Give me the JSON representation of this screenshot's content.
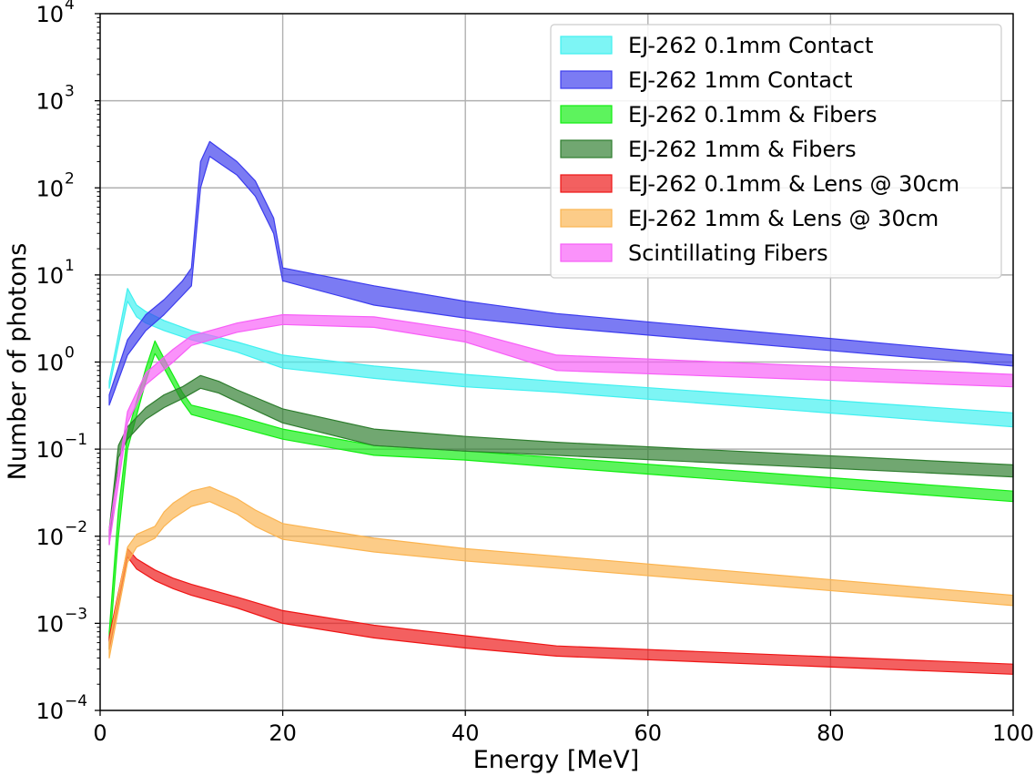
{
  "chart_data": {
    "type": "area",
    "title": "",
    "xlabel": "Energy [MeV]",
    "ylabel": "Number of photons",
    "xscale": "linear",
    "yscale": "log",
    "xlim": [
      0,
      100
    ],
    "ylim": [
      0.0001,
      10000
    ],
    "grid": true,
    "legend_position": "top-right",
    "x_ticks": [
      {
        "value": 0,
        "label": "0"
      },
      {
        "value": 20,
        "label": "20"
      },
      {
        "value": 40,
        "label": "40"
      },
      {
        "value": 60,
        "label": "60"
      },
      {
        "value": 80,
        "label": "80"
      },
      {
        "value": 100,
        "label": "100"
      }
    ],
    "y_ticks": [
      {
        "value": 0.0001,
        "base": "10",
        "exp": "−4"
      },
      {
        "value": 0.001,
        "base": "10",
        "exp": "−3"
      },
      {
        "value": 0.01,
        "base": "10",
        "exp": "−2"
      },
      {
        "value": 0.1,
        "base": "10",
        "exp": "−1"
      },
      {
        "value": 1,
        "base": "10",
        "exp": "0"
      },
      {
        "value": 10,
        "base": "10",
        "exp": "1"
      },
      {
        "value": 100,
        "base": "10",
        "exp": "2"
      },
      {
        "value": 1000,
        "base": "10",
        "exp": "3"
      },
      {
        "value": 10000,
        "base": "10",
        "exp": "4"
      }
    ],
    "series": [
      {
        "name": "EJ-262 0.1mm Contact",
        "color": "#40f0f0",
        "x": [
          1,
          3,
          4,
          5,
          7,
          10,
          15,
          20,
          30,
          40,
          50,
          100
        ],
        "lower": [
          0.5,
          5.0,
          3.3,
          2.8,
          2.3,
          1.8,
          1.3,
          0.85,
          0.65,
          0.52,
          0.45,
          0.18
        ],
        "upper": [
          0.6,
          7.0,
          4.5,
          3.8,
          3.0,
          2.3,
          1.7,
          1.2,
          0.9,
          0.72,
          0.6,
          0.26
        ]
      },
      {
        "name": "EJ-262 1mm Contact",
        "color": "#3c3cee",
        "x": [
          1,
          3,
          5,
          7,
          9,
          10,
          11,
          12,
          15,
          17,
          19,
          20,
          20.1,
          30,
          40,
          50,
          100
        ],
        "lower": [
          0.32,
          1.2,
          2.3,
          3.5,
          5.8,
          7.5,
          100,
          230,
          140,
          80,
          30,
          8.5,
          8.5,
          4.5,
          3.2,
          2.5,
          0.9
        ],
        "upper": [
          0.42,
          1.8,
          3.5,
          5.2,
          8.5,
          12,
          200,
          340,
          200,
          120,
          45,
          12,
          12,
          7.5,
          5.0,
          3.6,
          1.2
        ]
      },
      {
        "name": "EJ-262 0.1mm & Fibers",
        "color": "#10ee10",
        "x": [
          1,
          2,
          3,
          5,
          6,
          7,
          9,
          10,
          15,
          20,
          30,
          40,
          50,
          100
        ],
        "lower": [
          0.0005,
          0.01,
          0.1,
          0.6,
          1.25,
          0.85,
          0.35,
          0.25,
          0.18,
          0.13,
          0.085,
          0.075,
          0.062,
          0.025
        ],
        "upper": [
          0.0008,
          0.02,
          0.15,
          0.85,
          1.75,
          1.1,
          0.45,
          0.32,
          0.24,
          0.17,
          0.11,
          0.095,
          0.08,
          0.033
        ]
      },
      {
        "name": "EJ-262 1mm & Fibers",
        "color": "#2e7d2e",
        "x": [
          1,
          2,
          3,
          5,
          7,
          9,
          11,
          13,
          15,
          20,
          30,
          40,
          50,
          100
        ],
        "lower": [
          0.008,
          0.08,
          0.13,
          0.22,
          0.3,
          0.38,
          0.5,
          0.44,
          0.35,
          0.2,
          0.11,
          0.095,
          0.085,
          0.048
        ],
        "upper": [
          0.012,
          0.11,
          0.18,
          0.3,
          0.42,
          0.52,
          0.7,
          0.6,
          0.48,
          0.29,
          0.17,
          0.14,
          0.12,
          0.066
        ]
      },
      {
        "name": "EJ-262 0.1mm & Lens @ 30cm",
        "color": "#ee1515",
        "x": [
          1,
          3,
          4,
          6,
          8,
          10,
          15,
          20,
          30,
          40,
          50,
          100
        ],
        "lower": [
          0.0005,
          0.0058,
          0.0042,
          0.0031,
          0.0025,
          0.0021,
          0.0015,
          0.001,
          0.00068,
          0.00052,
          0.00042,
          0.00026
        ],
        "upper": [
          0.0007,
          0.0072,
          0.0055,
          0.0041,
          0.0033,
          0.0028,
          0.002,
          0.0014,
          0.00095,
          0.00072,
          0.00055,
          0.00034
        ]
      },
      {
        "name": "EJ-262 1mm & Lens @ 30cm",
        "color": "#fbb450",
        "x": [
          1,
          3,
          4,
          6,
          7,
          8,
          10,
          12,
          15,
          17,
          20,
          30,
          40,
          50,
          100
        ],
        "lower": [
          0.0004,
          0.005,
          0.0075,
          0.0095,
          0.013,
          0.016,
          0.022,
          0.025,
          0.018,
          0.013,
          0.0092,
          0.0066,
          0.0052,
          0.0043,
          0.0016
        ],
        "upper": [
          0.0006,
          0.0075,
          0.0105,
          0.013,
          0.019,
          0.024,
          0.033,
          0.037,
          0.027,
          0.02,
          0.014,
          0.0095,
          0.0072,
          0.0059,
          0.0021
        ]
      },
      {
        "name": "Scintillating Fibers",
        "color": "#f75ef7",
        "x": [
          1,
          3,
          5,
          8,
          10,
          15,
          20,
          30,
          40,
          50,
          100
        ],
        "lower": [
          0.008,
          0.2,
          0.55,
          1.0,
          1.55,
          2.2,
          2.7,
          2.5,
          1.7,
          0.8,
          0.52
        ],
        "upper": [
          0.012,
          0.27,
          0.75,
          1.4,
          2.0,
          2.8,
          3.5,
          3.3,
          2.3,
          1.2,
          0.72
        ]
      }
    ]
  }
}
